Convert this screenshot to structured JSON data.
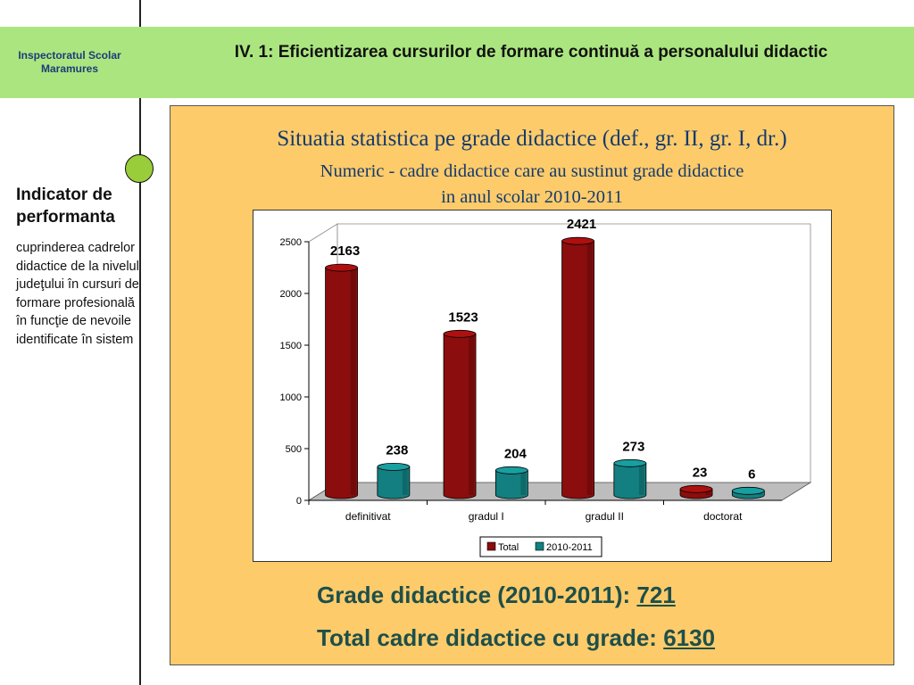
{
  "header": {
    "org": "Inspectoratul Scolar Maramures",
    "title": "IV. 1: Eficientizarea cursurilor de formare continuă a personalului didactic"
  },
  "sidebar": {
    "heading": "Indicator de performanta",
    "text": "cuprinderea cadrelor didactice de la nivelul judeţului în cursuri de formare profesională în funcţie de nevoile identificate în sistem"
  },
  "panel": {
    "title": "Situatia statistica pe grade didactice (def., gr. II, gr. I, dr.)",
    "subtitle_line1": "Numeric - cadre didactice care au sustinut grade didactice",
    "subtitle_line2": "in anul scolar 2010-2011"
  },
  "chart_data": {
    "type": "bar",
    "categories": [
      "definitivat",
      "gradul I",
      "gradul II",
      "doctorat"
    ],
    "series": [
      {
        "name": "Total",
        "values": [
          2163,
          1523,
          2421,
          23
        ],
        "color": "#8b0d0d"
      },
      {
        "name": "2010-2011",
        "values": [
          238,
          204,
          273,
          6
        ],
        "color": "#137f80"
      }
    ],
    "yticks": [
      0,
      500,
      1000,
      1500,
      2000,
      2500
    ],
    "ylim": [
      0,
      2500
    ],
    "legend_position": "bottom",
    "grid": false,
    "three_d": true
  },
  "summary": {
    "label1": "Grade didactice (2010-2011): ",
    "value1": "721",
    "label2": "Total cadre didactice cu grade: ",
    "value2": "6130"
  },
  "colors": {
    "header_band": "#abe57f",
    "panel_bg": "#fecb6a",
    "title_blue": "#133a6e",
    "summary_green": "#1e4f4a"
  }
}
